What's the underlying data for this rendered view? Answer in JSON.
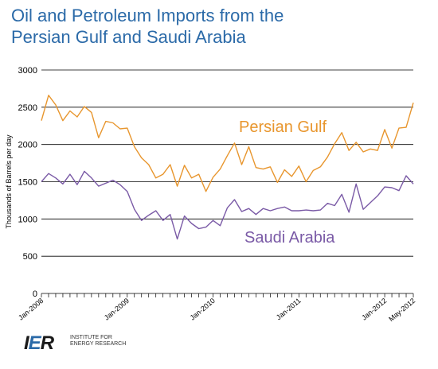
{
  "title_lines": [
    "Oil and Petroleum Imports from the",
    "Persian Gulf and Saudi Arabia"
  ],
  "logo": {
    "mark_prefix": "I",
    "mark_accent": "E",
    "mark_suffix": "R",
    "line1": "INSTITUTE FOR",
    "line2": "ENERGY RESEARCH"
  },
  "colors": {
    "persian_gulf": "#e8962e",
    "saudi_arabia": "#7a5aa6",
    "title": "#2b6aa8",
    "grid": "#000000"
  },
  "chart_data": {
    "type": "line",
    "title": "Oil and Petroleum Imports from the Persian Gulf and Saudi Arabia",
    "ylabel": "Thousands of Barrels per day",
    "xlabel": "",
    "ylim": [
      0,
      3000
    ],
    "yticks": [
      0,
      500,
      1000,
      1500,
      2000,
      2500,
      3000
    ],
    "grid": "horizontal",
    "x_tick_labels": [
      {
        "index": 0,
        "label": "Jan-2008"
      },
      {
        "index": 12,
        "label": "Jan-2009"
      },
      {
        "index": 24,
        "label": "Jan-2010"
      },
      {
        "index": 36,
        "label": "Jan-2011"
      },
      {
        "index": 48,
        "label": "Jan-2012"
      },
      {
        "index": 52,
        "label": "May-2012"
      }
    ],
    "x_range": [
      "Jan-2008",
      "May-2012"
    ],
    "series": [
      {
        "name": "Persian Gulf",
        "values": [
          2320,
          2660,
          2530,
          2320,
          2450,
          2370,
          2510,
          2430,
          2090,
          2310,
          2290,
          2210,
          2220,
          1970,
          1820,
          1730,
          1550,
          1600,
          1730,
          1440,
          1720,
          1550,
          1600,
          1370,
          1560,
          1670,
          1850,
          2020,
          1730,
          1970,
          1690,
          1670,
          1700,
          1490,
          1660,
          1570,
          1710,
          1500,
          1650,
          1700,
          1830,
          2010,
          2160,
          1920,
          2030,
          1900,
          1940,
          1920,
          2200,
          1950,
          2220,
          2230,
          2560
        ]
      },
      {
        "name": "Saudi Arabia",
        "values": [
          1500,
          1610,
          1550,
          1470,
          1600,
          1460,
          1640,
          1550,
          1440,
          1480,
          1520,
          1460,
          1370,
          1130,
          980,
          1050,
          1110,
          980,
          1060,
          730,
          1040,
          940,
          870,
          890,
          980,
          910,
          1150,
          1260,
          1100,
          1140,
          1060,
          1140,
          1110,
          1140,
          1160,
          1110,
          1110,
          1120,
          1110,
          1120,
          1210,
          1180,
          1330,
          1090,
          1470,
          1130,
          1220,
          1310,
          1430,
          1420,
          1380,
          1580,
          1470
        ]
      }
    ],
    "annotations": [
      {
        "text": "Persian Gulf",
        "series": "Persian Gulf"
      },
      {
        "text": "Saudi Arabia",
        "series": "Saudi Arabia"
      }
    ]
  }
}
